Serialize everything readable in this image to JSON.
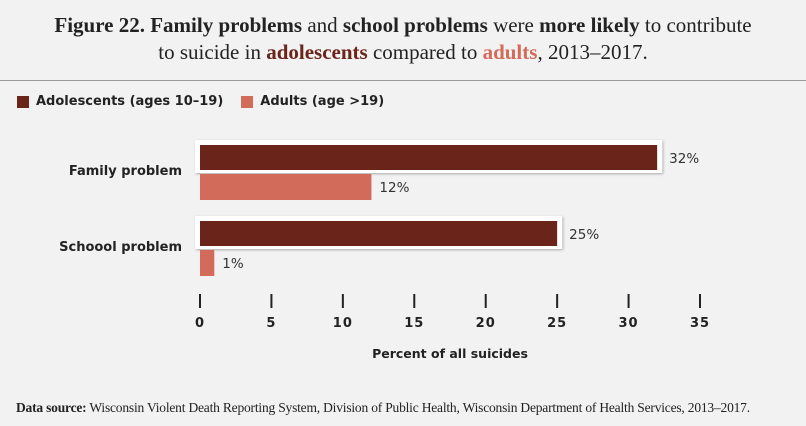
{
  "title": {
    "line1_parts": [
      {
        "text": "Figure 22. Family problems",
        "style": "bold"
      },
      {
        "text": " and ",
        "style": "normal"
      },
      {
        "text": "school problems",
        "style": "bold"
      },
      {
        "text": " were ",
        "style": "normal"
      },
      {
        "text": "more likely",
        "style": "bold"
      },
      {
        "text": " to contribute",
        "style": "normal"
      }
    ],
    "line2_parts": [
      {
        "text": "to suicide in ",
        "style": "normal"
      },
      {
        "text": "adolescents",
        "style": "adol"
      },
      {
        "text": " compared to ",
        "style": "normal"
      },
      {
        "text": "adults",
        "style": "adult"
      },
      {
        "text": ", 2013–2017.",
        "style": "normal"
      }
    ]
  },
  "colors": {
    "adolescents": "#6b241a",
    "adults": "#d36b5a",
    "background": "#f2f2f2"
  },
  "source": {
    "label": "Data source:",
    "text": " Wisconsin Violent Death Reporting System, Division of Public Health, Wisconsin Department of Health Services, 2013–2017."
  },
  "chart_data": {
    "type": "bar",
    "orientation": "horizontal",
    "title": "Figure 22. Family problems and school problems were more likely to contribute to suicide in adolescents compared to adults, 2013–2017.",
    "categories": [
      "Family problem",
      "Schoool problem"
    ],
    "series": [
      {
        "name": "Adolescents (ages 10–19)",
        "values": [
          32,
          25
        ],
        "labels": [
          "32%",
          "25%"
        ],
        "color": "#6b241a",
        "highlighted": true
      },
      {
        "name": "Adults (age >19)",
        "values": [
          12,
          1
        ],
        "labels": [
          "12%",
          "1%"
        ],
        "color": "#d36b5a",
        "highlighted": false
      }
    ],
    "xlabel": "Percent of all suicides",
    "ylabel": "",
    "xlim": [
      0,
      35
    ],
    "xticks": [
      0,
      5,
      10,
      15,
      20,
      25,
      30,
      35
    ],
    "grid": false,
    "legend": {
      "position": "top-left"
    }
  }
}
